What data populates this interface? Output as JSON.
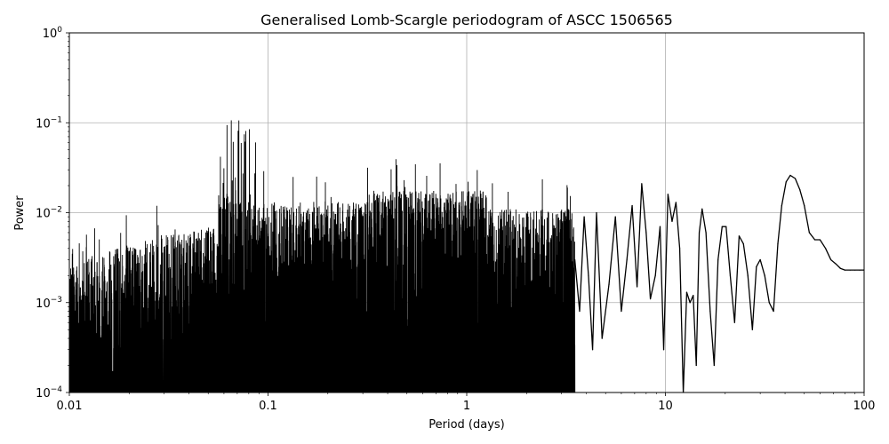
{
  "chart_data": {
    "type": "line",
    "title": "Generalised Lomb-Scargle periodogram of ASCC 1506565",
    "xlabel": "Period (days)",
    "ylabel": "Power",
    "x_scale": "log",
    "y_scale": "log",
    "xlim": [
      0.01,
      100
    ],
    "ylim": [
      0.0001,
      1
    ],
    "grid": true,
    "x_ticks": [
      {
        "value": 0.01,
        "label": "0.01"
      },
      {
        "value": 0.1,
        "label": "0.1"
      },
      {
        "value": 1,
        "label": "1"
      },
      {
        "value": 10,
        "label": "10"
      },
      {
        "value": 100,
        "label": "100"
      }
    ],
    "y_ticks": [
      {
        "value": 0.0001,
        "base": "10",
        "exp": "−4"
      },
      {
        "value": 0.001,
        "base": "10",
        "exp": "−3"
      },
      {
        "value": 0.01,
        "base": "10",
        "exp": "−2"
      },
      {
        "value": 0.1,
        "base": "10",
        "exp": "−1"
      },
      {
        "value": 1,
        "base": "10",
        "exp": "0"
      }
    ],
    "line_color": "#000000",
    "series": [
      {
        "x": [
          3.5,
          3.7,
          3.9,
          4.1,
          4.3,
          4.5,
          4.8,
          5.2,
          5.6,
          6.0,
          6.4,
          6.8,
          7.2,
          7.6,
          8.0,
          8.4,
          8.9,
          9.4,
          9.8,
          10.3,
          10.8,
          11.3,
          11.8,
          12.3,
          12.8,
          13.3,
          13.8,
          14.3,
          14.8,
          15.3,
          16.0,
          16.8,
          17.6,
          18.4,
          19.3,
          20.2,
          21.2,
          22.3,
          23.5,
          24.7,
          26.0,
          27.4,
          28.7,
          30.0,
          31.6,
          33.3,
          35.0,
          36.8,
          38.5,
          40.5,
          42.5,
          45.0,
          47.5,
          50.0,
          53.0,
          56.5,
          60.0,
          64.0,
          68.0,
          72.0,
          76.0,
          80.0,
          85.0,
          90.0,
          95.0,
          100.0
        ],
        "y": [
          0.003,
          0.0008,
          0.009,
          0.002,
          0.0003,
          0.01,
          0.0004,
          0.0016,
          0.009,
          0.0008,
          0.003,
          0.012,
          0.0015,
          0.021,
          0.006,
          0.0011,
          0.002,
          0.007,
          0.0003,
          0.016,
          0.008,
          0.013,
          0.004,
          0.0001,
          0.0013,
          0.001,
          0.0012,
          0.0002,
          0.006,
          0.011,
          0.006,
          0.0008,
          0.0002,
          0.003,
          0.007,
          0.007,
          0.002,
          0.0006,
          0.0055,
          0.0045,
          0.002,
          0.0005,
          0.0025,
          0.003,
          0.002,
          0.001,
          0.0008,
          0.0045,
          0.012,
          0.022,
          0.026,
          0.024,
          0.018,
          0.012,
          0.006,
          0.005,
          0.005,
          0.004,
          0.003,
          0.0027,
          0.0024,
          0.0023,
          0.0023,
          0.0023,
          0.0023,
          0.0023
        ]
      }
    ]
  }
}
